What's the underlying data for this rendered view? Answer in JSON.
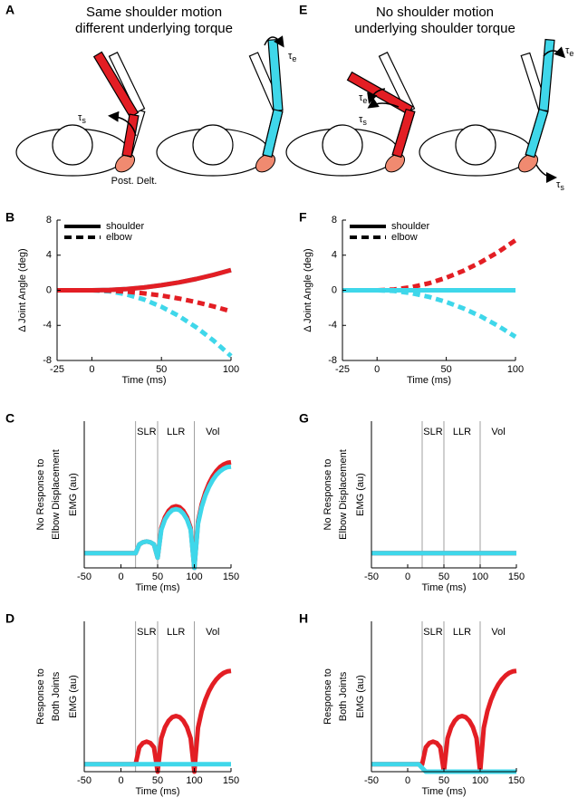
{
  "diagrams": [
    {
      "panel": "A",
      "title": [
        "Same shoulder motion",
        "different underlying torque"
      ],
      "muscle_label": "Post. Delt.",
      "torques": [
        {
          "symbol": "τ",
          "sub": "s"
        },
        {
          "symbol": "τ",
          "sub": "e"
        }
      ]
    },
    {
      "panel": "E",
      "title": [
        "No shoulder motion",
        "underlying shoulder torque"
      ],
      "torques": [
        {
          "symbol": "τ",
          "sub": "e"
        },
        {
          "symbol": "τ",
          "sub": "s"
        },
        {
          "symbol": "τ",
          "sub": "e"
        },
        {
          "symbol": "τ",
          "sub": "s"
        }
      ]
    }
  ],
  "chart_data": [
    {
      "type": "line",
      "panel": "B",
      "xlabel": "Time (ms)",
      "ylabel": "Δ Joint Angle (deg)",
      "x": [
        -25,
        -12.5,
        0,
        12.5,
        25,
        37.5,
        50,
        62.5,
        75,
        87.5,
        100
      ],
      "xlim": [
        -25,
        100
      ],
      "xticks": [
        -25,
        0,
        50,
        100
      ],
      "ylim": [
        -8,
        8
      ],
      "yticks": [
        -8,
        -4,
        0,
        4,
        8
      ],
      "legend": [
        {
          "name": "shoulder",
          "dash": "solid"
        },
        {
          "name": "elbow",
          "dash": "dashed"
        }
      ],
      "series": [
        {
          "color": "#3fd7ea",
          "dash": "dashed",
          "values": [
            0,
            0,
            0,
            -0.12,
            -0.47,
            -1.05,
            -1.88,
            -2.93,
            -4.22,
            -5.74,
            -7.5
          ]
        },
        {
          "color": "#3fd7ea",
          "dash": "solid",
          "values": [
            0,
            0,
            0,
            0.04,
            0.14,
            0.32,
            0.58,
            0.9,
            1.29,
            1.76,
            2.3
          ]
        },
        {
          "color": "#e31e24",
          "dash": "solid",
          "values": [
            0,
            0,
            0,
            0.04,
            0.14,
            0.32,
            0.58,
            0.9,
            1.29,
            1.76,
            2.3
          ]
        },
        {
          "color": "#e31e24",
          "dash": "dashed",
          "values": [
            0,
            0,
            0,
            -0.04,
            -0.15,
            -0.35,
            -0.6,
            -0.94,
            -1.35,
            -1.84,
            -2.4
          ]
        }
      ]
    },
    {
      "type": "line",
      "panel": "F",
      "xlabel": "Time (ms)",
      "ylabel": "Δ Joint Angle (deg)",
      "x": [
        -25,
        -12.5,
        0,
        12.5,
        25,
        37.5,
        50,
        62.5,
        75,
        87.5,
        100
      ],
      "xlim": [
        -25,
        100
      ],
      "xticks": [
        -25,
        0,
        50,
        100
      ],
      "ylim": [
        -8,
        8
      ],
      "yticks": [
        -8,
        -4,
        0,
        4,
        8
      ],
      "legend": [
        {
          "name": "shoulder",
          "dash": "solid"
        },
        {
          "name": "elbow",
          "dash": "dashed"
        }
      ],
      "series": [
        {
          "color": "#e31e24",
          "dash": "solid",
          "values": [
            0,
            0,
            0,
            0,
            0,
            0,
            0,
            0,
            0,
            0,
            0
          ]
        },
        {
          "color": "#e31e24",
          "dash": "dashed",
          "values": [
            0,
            0,
            0,
            0.09,
            0.36,
            0.8,
            1.43,
            2.23,
            3.21,
            4.36,
            5.7
          ]
        },
        {
          "color": "#3fd7ea",
          "dash": "solid",
          "values": [
            0,
            0,
            0,
            0,
            0,
            0,
            0,
            0,
            0,
            0,
            0
          ]
        },
        {
          "color": "#3fd7ea",
          "dash": "dashed",
          "values": [
            0,
            0,
            0,
            -0.08,
            -0.33,
            -0.75,
            -1.33,
            -2.07,
            -2.98,
            -4.06,
            -5.3
          ]
        }
      ]
    },
    {
      "type": "line",
      "panel": "C",
      "side_label": [
        "No Response to",
        "Elbow Displacement"
      ],
      "xlabel": "Time (ms)",
      "ylabel": "EMG (au)",
      "x": [
        -50,
        -45,
        -40,
        -35,
        -30,
        -25,
        -20,
        -15,
        -10,
        -5,
        0,
        5,
        10,
        15,
        20,
        25,
        30,
        35,
        40,
        45,
        50,
        55,
        60,
        65,
        70,
        75,
        80,
        85,
        90,
        95,
        100,
        105,
        110,
        115,
        120,
        125,
        130,
        135,
        140,
        145,
        150
      ],
      "xlim": [
        -50,
        150
      ],
      "xticks": [
        -50,
        0,
        50,
        100,
        150
      ],
      "ylim": [
        0,
        10
      ],
      "epochs": [
        20,
        50,
        100
      ],
      "epoch_labels": [
        "SLR",
        "LLR",
        "Vol"
      ],
      "series": [
        {
          "color": "#e31e24",
          "dash": "solid",
          "values": [
            1,
            1,
            1,
            1,
            1,
            1,
            1,
            1,
            1,
            1,
            1,
            1,
            1,
            1,
            1,
            1.6,
            1.75,
            1.8,
            1.75,
            1.6,
            0.7,
            2.72,
            3.46,
            3.89,
            4.13,
            4.2,
            4.13,
            3.89,
            3.46,
            2.72,
            0,
            3.14,
            4.32,
            5.14,
            5.76,
            6.24,
            6.6,
            6.87,
            7.05,
            7.16,
            7.2
          ]
        },
        {
          "color": "#3fd7ea",
          "dash": "solid",
          "values": [
            1,
            1,
            1,
            1,
            1,
            1,
            1,
            1,
            1,
            1,
            1,
            1,
            1,
            1,
            1,
            1.6,
            1.75,
            1.8,
            1.75,
            1.6,
            0.7,
            2.6,
            3.3,
            3.7,
            3.94,
            4.0,
            3.94,
            3.7,
            3.3,
            2.6,
            0,
            3.0,
            4.14,
            4.93,
            5.52,
            5.98,
            6.33,
            6.58,
            6.76,
            6.87,
            6.9
          ]
        }
      ]
    },
    {
      "type": "line",
      "panel": "G",
      "side_label": [
        "No Response to",
        "Elbow Displacement"
      ],
      "xlabel": "Time (ms)",
      "ylabel": "EMG (au)",
      "x": [
        -50,
        150
      ],
      "xlim": [
        -50,
        150
      ],
      "xticks": [
        -50,
        0,
        50,
        100,
        150
      ],
      "ylim": [
        0,
        10
      ],
      "epochs": [
        20,
        50,
        100
      ],
      "epoch_labels": [
        "SLR",
        "LLR",
        "Vol"
      ],
      "series": [
        {
          "color": "#e31e24",
          "dash": "solid",
          "values": [
            1,
            1
          ]
        },
        {
          "color": "#3fd7ea",
          "dash": "solid",
          "values": [
            1,
            1
          ]
        }
      ]
    },
    {
      "type": "line",
      "panel": "D",
      "side_label": [
        "Response to",
        "Both Joints"
      ],
      "xlabel": "Time (ms)",
      "ylabel": "EMG (au)",
      "x": [
        -50,
        -45,
        -40,
        -35,
        -30,
        -25,
        -20,
        -15,
        -10,
        -5,
        0,
        5,
        10,
        15,
        20,
        25,
        30,
        35,
        40,
        45,
        50,
        55,
        60,
        65,
        70,
        75,
        80,
        85,
        90,
        95,
        100,
        105,
        110,
        115,
        120,
        125,
        130,
        135,
        140,
        145,
        150
      ],
      "xlim": [
        -50,
        150
      ],
      "xticks": [
        -50,
        0,
        50,
        100,
        150
      ],
      "ylim": [
        0,
        10
      ],
      "epochs": [
        20,
        50,
        100
      ],
      "epoch_labels": [
        "SLR",
        "LLR",
        "Vol"
      ],
      "series": [
        {
          "color": "#e31e24",
          "dash": "solid",
          "values": [
            0.5,
            0.5,
            0.5,
            0.5,
            0.5,
            0.5,
            0.5,
            0.5,
            0.5,
            0.5,
            0.5,
            0.5,
            0.5,
            0.5,
            0.5,
            1.62,
            1.91,
            2.0,
            1.91,
            1.62,
            0,
            2.22,
            2.96,
            3.39,
            3.63,
            3.7,
            3.63,
            3.39,
            2.96,
            2.22,
            0,
            2.92,
            4.02,
            4.78,
            5.36,
            5.8,
            6.14,
            6.39,
            6.57,
            6.67,
            6.7
          ]
        },
        {
          "color": "#3fd7ea",
          "dash": "solid",
          "values": [
            0.5,
            0.5,
            0.5,
            0.5,
            0.5,
            0.5,
            0.5,
            0.5,
            0.5,
            0.5,
            0.5,
            0.5,
            0.5,
            0.5,
            0.5,
            0.5,
            0.5,
            0.5,
            0.5,
            0.5,
            0.5,
            0.5,
            0.5,
            0.5,
            0.5,
            0.5,
            0.5,
            0.5,
            0.5,
            0.5,
            0.5,
            0.5,
            0.5,
            0.5,
            0.5,
            0.5,
            0.5,
            0.5,
            0.5,
            0.5,
            0.5
          ]
        }
      ]
    },
    {
      "type": "line",
      "panel": "H",
      "side_label": [
        "Response to",
        "Both Joints"
      ],
      "xlabel": "Time (ms)",
      "ylabel": "EMG (au)",
      "x": [
        -50,
        -45,
        -40,
        -35,
        -30,
        -25,
        -20,
        -15,
        -10,
        -5,
        0,
        5,
        10,
        15,
        20,
        25,
        30,
        35,
        40,
        45,
        50,
        55,
        60,
        65,
        70,
        75,
        80,
        85,
        90,
        95,
        100,
        105,
        110,
        115,
        120,
        125,
        130,
        135,
        140,
        145,
        150
      ],
      "xlim": [
        -50,
        150
      ],
      "xticks": [
        -50,
        0,
        50,
        100,
        150
      ],
      "ylim": [
        0,
        10
      ],
      "epochs": [
        20,
        50,
        100
      ],
      "epoch_labels": [
        "SLR",
        "LLR",
        "Vol"
      ],
      "series": [
        {
          "color": "#e31e24",
          "dash": "solid",
          "values": [
            0.5,
            0.5,
            0.5,
            0.5,
            0.5,
            0.5,
            0.5,
            0.5,
            0.5,
            0.5,
            0.5,
            0.5,
            0.5,
            0.5,
            0.5,
            1.62,
            1.91,
            2.0,
            1.91,
            1.62,
            0,
            2.22,
            2.96,
            3.39,
            3.63,
            3.7,
            3.63,
            3.39,
            2.96,
            2.22,
            0,
            2.92,
            4.02,
            4.78,
            5.36,
            5.8,
            6.14,
            6.39,
            6.57,
            6.67,
            6.7
          ]
        },
        {
          "color": "#3fd7ea",
          "dash": "solid",
          "values": [
            0.5,
            0.5,
            0.5,
            0.5,
            0.5,
            0.5,
            0.5,
            0.5,
            0.5,
            0.5,
            0.5,
            0.5,
            0.5,
            0.5,
            0.25,
            0,
            0,
            0,
            0,
            0,
            0,
            0,
            0,
            0,
            0,
            0,
            0,
            0,
            0,
            0,
            0,
            0,
            0,
            0,
            0,
            0,
            0,
            0,
            0,
            0,
            0
          ]
        }
      ]
    }
  ]
}
